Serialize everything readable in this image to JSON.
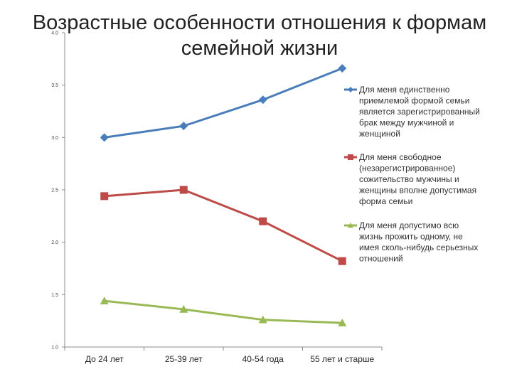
{
  "title_lines": [
    "Возрастные особенности отношения к формам",
    "семейной жизни"
  ],
  "chart_data": {
    "type": "line",
    "title": "Возрастные особенности отношения к формам семейной жизни",
    "categories": [
      "До 24 лет",
      "25-39 лет",
      "40-54 года",
      "55 лет и старше"
    ],
    "ylim": [
      1.0,
      4.0
    ],
    "yticks": [
      "1.0",
      "1.5",
      "2.0",
      "2.5",
      "3.0",
      "3.5",
      "4.0"
    ],
    "grid": false,
    "legend_position": "right",
    "series": [
      {
        "name": "Для меня единственно приемлемой формой семьи является зарегистрированный брак между мужчиной и женщиной",
        "legend_lines": [
          "Для меня единственно",
          "приемлемой формой семьи",
          "является зарегистрированный",
          "брак между мужчиной и",
          "женщиной"
        ],
        "values": [
          3.0,
          3.11,
          3.36,
          3.66
        ],
        "color": "#4a7ebb",
        "marker": "diamond"
      },
      {
        "name": "Для меня свободное (незарегистрированное) сожительство мужчины и женщины вполне допустимая форма семьи",
        "legend_lines": [
          "Для меня свободное",
          "(незарегистрированное)",
          "сожительство мужчины и",
          "женщины вполне допустимая",
          "форма семьи"
        ],
        "values": [
          2.44,
          2.5,
          2.2,
          1.82
        ],
        "color": "#be4b48",
        "marker": "square"
      },
      {
        "name": "Для меня допустимо всю жизнь прожить одному, не имея сколь-нибудь серьезных отношений",
        "legend_lines": [
          "Для меня допустимо всю",
          "жизнь прожить одному, не",
          "имея сколь-нибудь серьезных",
          "отношений"
        ],
        "values": [
          1.44,
          1.36,
          1.26,
          1.23
        ],
        "color": "#98b954",
        "marker": "triangle"
      }
    ]
  }
}
